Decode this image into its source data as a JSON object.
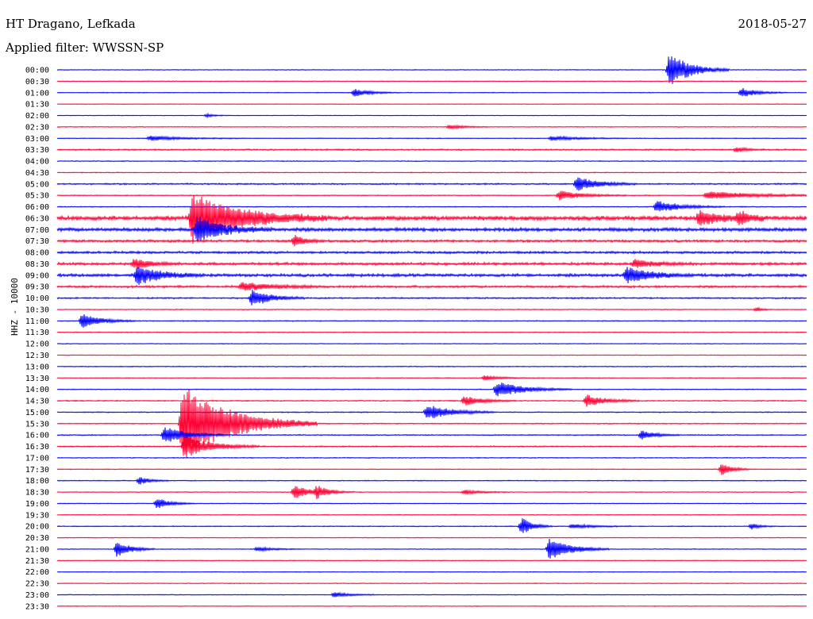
{
  "header": {
    "station": "HT Dragano, Lefkada",
    "date": "2018-05-27",
    "filter": "Applied filter: WWSSN-SP"
  },
  "colors": {
    "even_trace": "#0000ff",
    "odd_trace": "#ff0033",
    "text": "#000000"
  },
  "chart_data": {
    "type": "line",
    "title": "HT Dragano, Lefkada",
    "ylabel": "HHZ - 10000",
    "x_unit": "minutes",
    "xlim": [
      0,
      30
    ],
    "row_labels": [
      "00:00",
      "00:30",
      "01:00",
      "01:30",
      "02:00",
      "02:30",
      "03:00",
      "03:30",
      "04:00",
      "04:30",
      "05:00",
      "05:30",
      "06:00",
      "06:30",
      "07:00",
      "07:30",
      "08:00",
      "08:30",
      "09:00",
      "09:30",
      "10:00",
      "10:30",
      "11:00",
      "11:30",
      "12:00",
      "12:30",
      "13:00",
      "13:30",
      "14:00",
      "14:30",
      "15:00",
      "15:30",
      "16:00",
      "16:30",
      "17:00",
      "17:30",
      "18:00",
      "18:30",
      "19:00",
      "19:30",
      "20:00",
      "20:30",
      "21:00",
      "21:30",
      "22:00",
      "22:30",
      "23:00",
      "23:30"
    ],
    "noise_level": [
      0.5,
      0.5,
      0.5,
      0.4,
      0.4,
      0.5,
      0.5,
      1,
      0.6,
      0.6,
      1,
      0.6,
      0.6,
      3,
      2.4,
      1.6,
      1.6,
      1.8,
      2,
      1.5,
      1,
      0.6,
      0.6,
      0.6,
      0.5,
      0.5,
      0.6,
      0.5,
      0.6,
      0.7,
      0.7,
      0.7,
      0.7,
      0.8,
      0.6,
      0.5,
      0.6,
      0.5,
      0.5,
      0.5,
      0.6,
      0.5,
      0.5,
      0.5,
      0.5,
      0.5,
      0.5,
      0.5
    ],
    "events": [
      {
        "row": 0,
        "t": 24.5,
        "amp": 22,
        "dur": 0.8
      },
      {
        "row": 2,
        "t": 11.9,
        "amp": 5,
        "dur": 0.6
      },
      {
        "row": 2,
        "t": 27.4,
        "amp": 6,
        "dur": 0.6
      },
      {
        "row": 4,
        "t": 6.0,
        "amp": 2,
        "dur": 0.3
      },
      {
        "row": 5,
        "t": 15.7,
        "amp": 3,
        "dur": 0.5
      },
      {
        "row": 6,
        "t": 3.7,
        "amp": 3,
        "dur": 1.2
      },
      {
        "row": 6,
        "t": 19.8,
        "amp": 3,
        "dur": 1.0
      },
      {
        "row": 7,
        "t": 27.2,
        "amp": 3,
        "dur": 0.4
      },
      {
        "row": 10,
        "t": 20.8,
        "amp": 9,
        "dur": 0.8
      },
      {
        "row": 11,
        "t": 20.1,
        "amp": 6,
        "dur": 0.9
      },
      {
        "row": 11,
        "t": 26.0,
        "amp": 5,
        "dur": 2.0
      },
      {
        "row": 12,
        "t": 24.0,
        "amp": 8,
        "dur": 0.9
      },
      {
        "row": 13,
        "t": 5.4,
        "amp": 32,
        "dur": 1.8
      },
      {
        "row": 13,
        "t": 25.7,
        "amp": 9,
        "dur": 0.9
      },
      {
        "row": 13,
        "t": 27.3,
        "amp": 8,
        "dur": 0.4
      },
      {
        "row": 14,
        "t": 5.6,
        "amp": 16,
        "dur": 1.0
      },
      {
        "row": 15,
        "t": 9.5,
        "amp": 7,
        "dur": 0.4
      },
      {
        "row": 17,
        "t": 3.1,
        "amp": 7,
        "dur": 0.6
      },
      {
        "row": 17,
        "t": 23.1,
        "amp": 5,
        "dur": 0.8
      },
      {
        "row": 18,
        "t": 3.2,
        "amp": 12,
        "dur": 0.9
      },
      {
        "row": 18,
        "t": 22.8,
        "amp": 11,
        "dur": 0.9
      },
      {
        "row": 19,
        "t": 7.4,
        "amp": 5,
        "dur": 1.2
      },
      {
        "row": 20,
        "t": 7.8,
        "amp": 11,
        "dur": 0.7
      },
      {
        "row": 21,
        "t": 28.0,
        "amp": 3,
        "dur": 0.2
      },
      {
        "row": 22,
        "t": 1.0,
        "amp": 9,
        "dur": 0.7
      },
      {
        "row": 27,
        "t": 17.1,
        "amp": 3,
        "dur": 0.6
      },
      {
        "row": 28,
        "t": 17.6,
        "amp": 10,
        "dur": 1.0
      },
      {
        "row": 29,
        "t": 16.3,
        "amp": 6,
        "dur": 0.7
      },
      {
        "row": 29,
        "t": 21.2,
        "amp": 8,
        "dur": 0.7
      },
      {
        "row": 30,
        "t": 14.8,
        "amp": 10,
        "dur": 0.9
      },
      {
        "row": 31,
        "t": 5.0,
        "amp": 50,
        "dur": 1.8
      },
      {
        "row": 32,
        "t": 4.3,
        "amp": 11,
        "dur": 0.8
      },
      {
        "row": 32,
        "t": 23.4,
        "amp": 6,
        "dur": 0.5
      },
      {
        "row": 33,
        "t": 5.1,
        "amp": 14,
        "dur": 1.0
      },
      {
        "row": 35,
        "t": 26.6,
        "amp": 8,
        "dur": 0.4
      },
      {
        "row": 36,
        "t": 3.3,
        "amp": 5,
        "dur": 0.4
      },
      {
        "row": 37,
        "t": 9.5,
        "amp": 9,
        "dur": 0.6
      },
      {
        "row": 37,
        "t": 10.4,
        "amp": 7,
        "dur": 0.5
      },
      {
        "row": 37,
        "t": 16.3,
        "amp": 3,
        "dur": 0.6
      },
      {
        "row": 38,
        "t": 4.0,
        "amp": 7,
        "dur": 0.5
      },
      {
        "row": 40,
        "t": 18.6,
        "amp": 11,
        "dur": 0.4
      },
      {
        "row": 40,
        "t": 20.6,
        "amp": 3,
        "dur": 0.8
      },
      {
        "row": 40,
        "t": 27.8,
        "amp": 4,
        "dur": 0.3
      },
      {
        "row": 42,
        "t": 2.4,
        "amp": 11,
        "dur": 0.5
      },
      {
        "row": 42,
        "t": 8.0,
        "amp": 3,
        "dur": 0.6
      },
      {
        "row": 42,
        "t": 19.7,
        "amp": 14,
        "dur": 0.8
      },
      {
        "row": 46,
        "t": 11.1,
        "amp": 3,
        "dur": 0.6
      }
    ]
  }
}
